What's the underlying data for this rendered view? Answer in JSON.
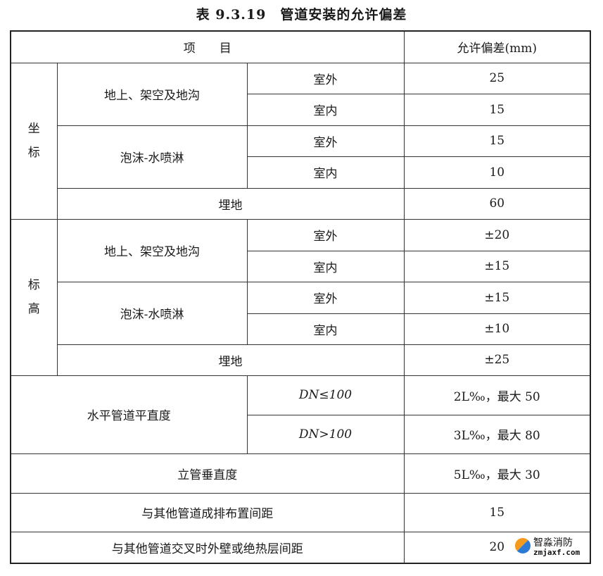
{
  "title": "表 9.3.19　管道安装的允许偏差",
  "header": {
    "item": "项　　目",
    "deviation": "允许偏差(mm)"
  },
  "coordinate": {
    "label": "坐\n标",
    "groups": [
      {
        "name": "地上、架空及地沟",
        "rows": [
          {
            "loc": "室外",
            "value": "25"
          },
          {
            "loc": "室内",
            "value": "15"
          }
        ]
      },
      {
        "name": "泡沫-水喷淋",
        "rows": [
          {
            "loc": "室外",
            "value": "15"
          },
          {
            "loc": "室内",
            "value": "10"
          }
        ]
      }
    ],
    "buried": {
      "name": "埋地",
      "value": "60"
    }
  },
  "elevation": {
    "label": "标\n高",
    "groups": [
      {
        "name": "地上、架空及地沟",
        "rows": [
          {
            "loc": "室外",
            "value": "±20"
          },
          {
            "loc": "室内",
            "value": "±15"
          }
        ]
      },
      {
        "name": "泡沫-水喷淋",
        "rows": [
          {
            "loc": "室外",
            "value": "±15"
          },
          {
            "loc": "室内",
            "value": "±10"
          }
        ]
      }
    ],
    "buried": {
      "name": "埋地",
      "value": "±25"
    }
  },
  "horizontal": {
    "name": "水平管道平直度",
    "rows": [
      {
        "cond": "DN≤100",
        "value": "2L‰，最大 50"
      },
      {
        "cond": "DN>100",
        "value": "3L‰，最大 80"
      }
    ]
  },
  "vertical": {
    "name": "立管垂直度",
    "value": "5L‰，最大 30"
  },
  "spacing": {
    "name": "与其他管道成排布置间距",
    "value": "15"
  },
  "crossing": {
    "name": "与其他管道交叉时外壁或绝热层间距",
    "value": "20"
  },
  "watermark": {
    "name": "智淼消防",
    "url": "zmjaxf.com"
  }
}
